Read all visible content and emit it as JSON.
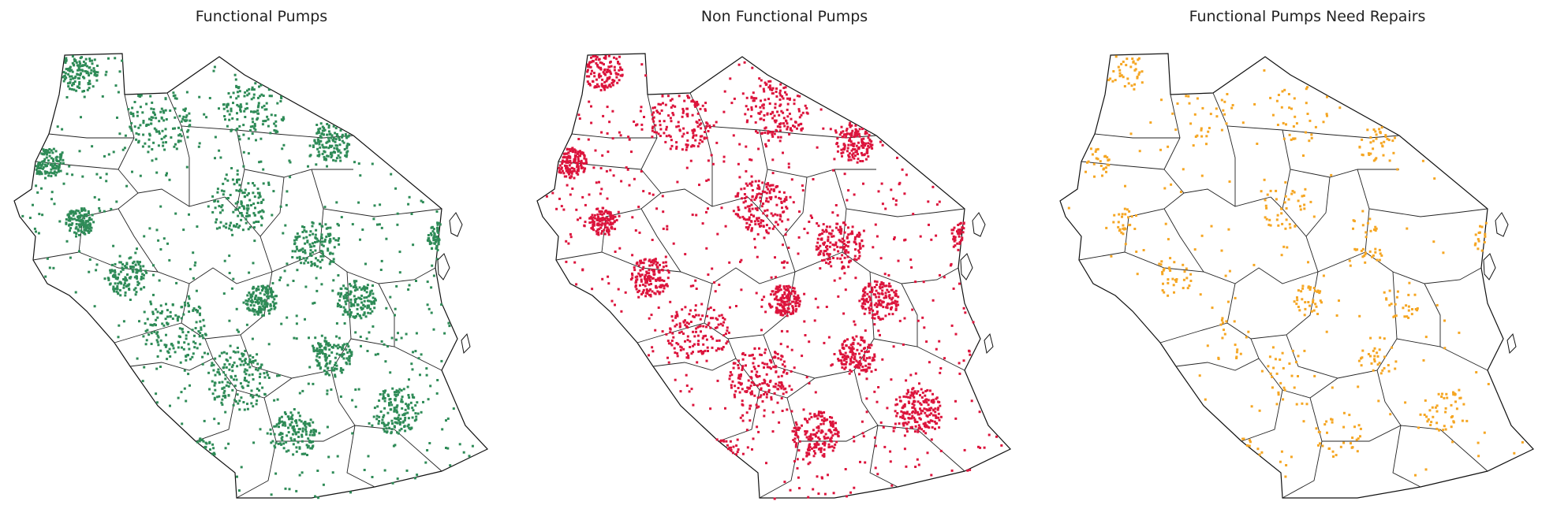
{
  "figure": {
    "panels": [
      {
        "title": "Functional Pumps",
        "color": "#2e8b57"
      },
      {
        "title": "Non Functional Pumps",
        "color": "#dc143c"
      },
      {
        "title": "Functional Pumps Need Repairs",
        "color": "#f5a623"
      }
    ]
  },
  "chart_data": [
    {
      "type": "scatter",
      "title": "Functional Pumps",
      "color": "#2e8b57",
      "axes": "off",
      "density": "high"
    },
    {
      "type": "scatter",
      "title": "Non Functional Pumps",
      "color": "#dc143c",
      "axes": "off",
      "density": "high"
    },
    {
      "type": "scatter",
      "title": "Functional Pumps Need Repairs",
      "color": "#f5a623",
      "axes": "off",
      "density": "low"
    }
  ]
}
